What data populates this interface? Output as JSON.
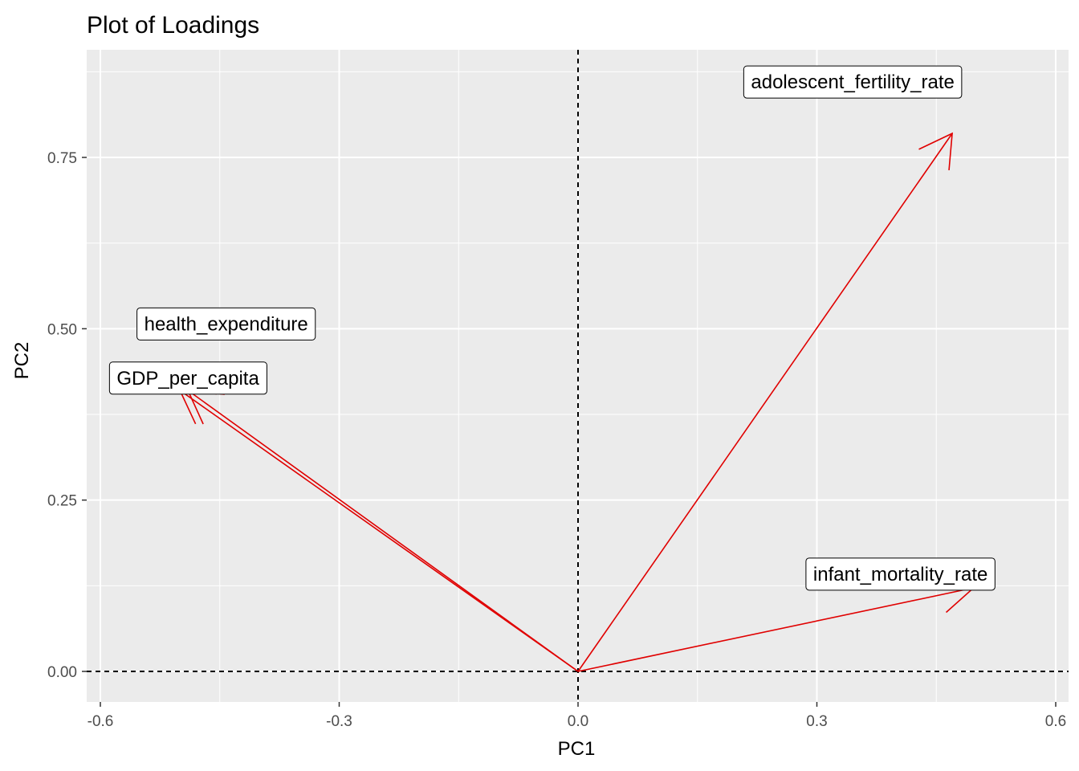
{
  "chart_data": {
    "type": "loadings-biplot",
    "title": "Plot of Loadings",
    "xlabel": "PC1",
    "ylabel": "PC2",
    "xlim": [
      -0.62,
      0.62
    ],
    "ylim": [
      -0.08,
      0.89
    ],
    "x_ticks": [
      -0.6,
      -0.3,
      0.0,
      0.3,
      0.6
    ],
    "x_tick_labels": [
      "-0.6",
      "-0.3",
      "0.0",
      "0.3",
      "0.6"
    ],
    "y_ticks": [
      0.0,
      0.25,
      0.5,
      0.75
    ],
    "y_tick_labels": [
      "0.00",
      "0.25",
      "0.50",
      "0.75"
    ],
    "grid": true,
    "reference_lines": {
      "x": 0,
      "y": 0,
      "style": "dashed"
    },
    "arrow_color": "#e00000",
    "panel_background": "#ebebeb",
    "loadings": [
      {
        "name": "adolescent_fertility_rate",
        "x": 0.47,
        "y": 0.785,
        "label_x": 0.345,
        "label_y": 0.86
      },
      {
        "name": "infant_mortality_rate",
        "x": 0.497,
        "y": 0.122,
        "label_x": 0.405,
        "label_y": 0.142
      },
      {
        "name": "health_expenditure",
        "x": 0.49,
        "y": 0.41,
        "label_x": -0.442,
        "label_y": 0.507,
        "x_sign": -1
      },
      {
        "name": "GDP_per_capita",
        "x": -0.5,
        "y": 0.41,
        "label_x": -0.49,
        "label_y": 0.428
      }
    ]
  }
}
